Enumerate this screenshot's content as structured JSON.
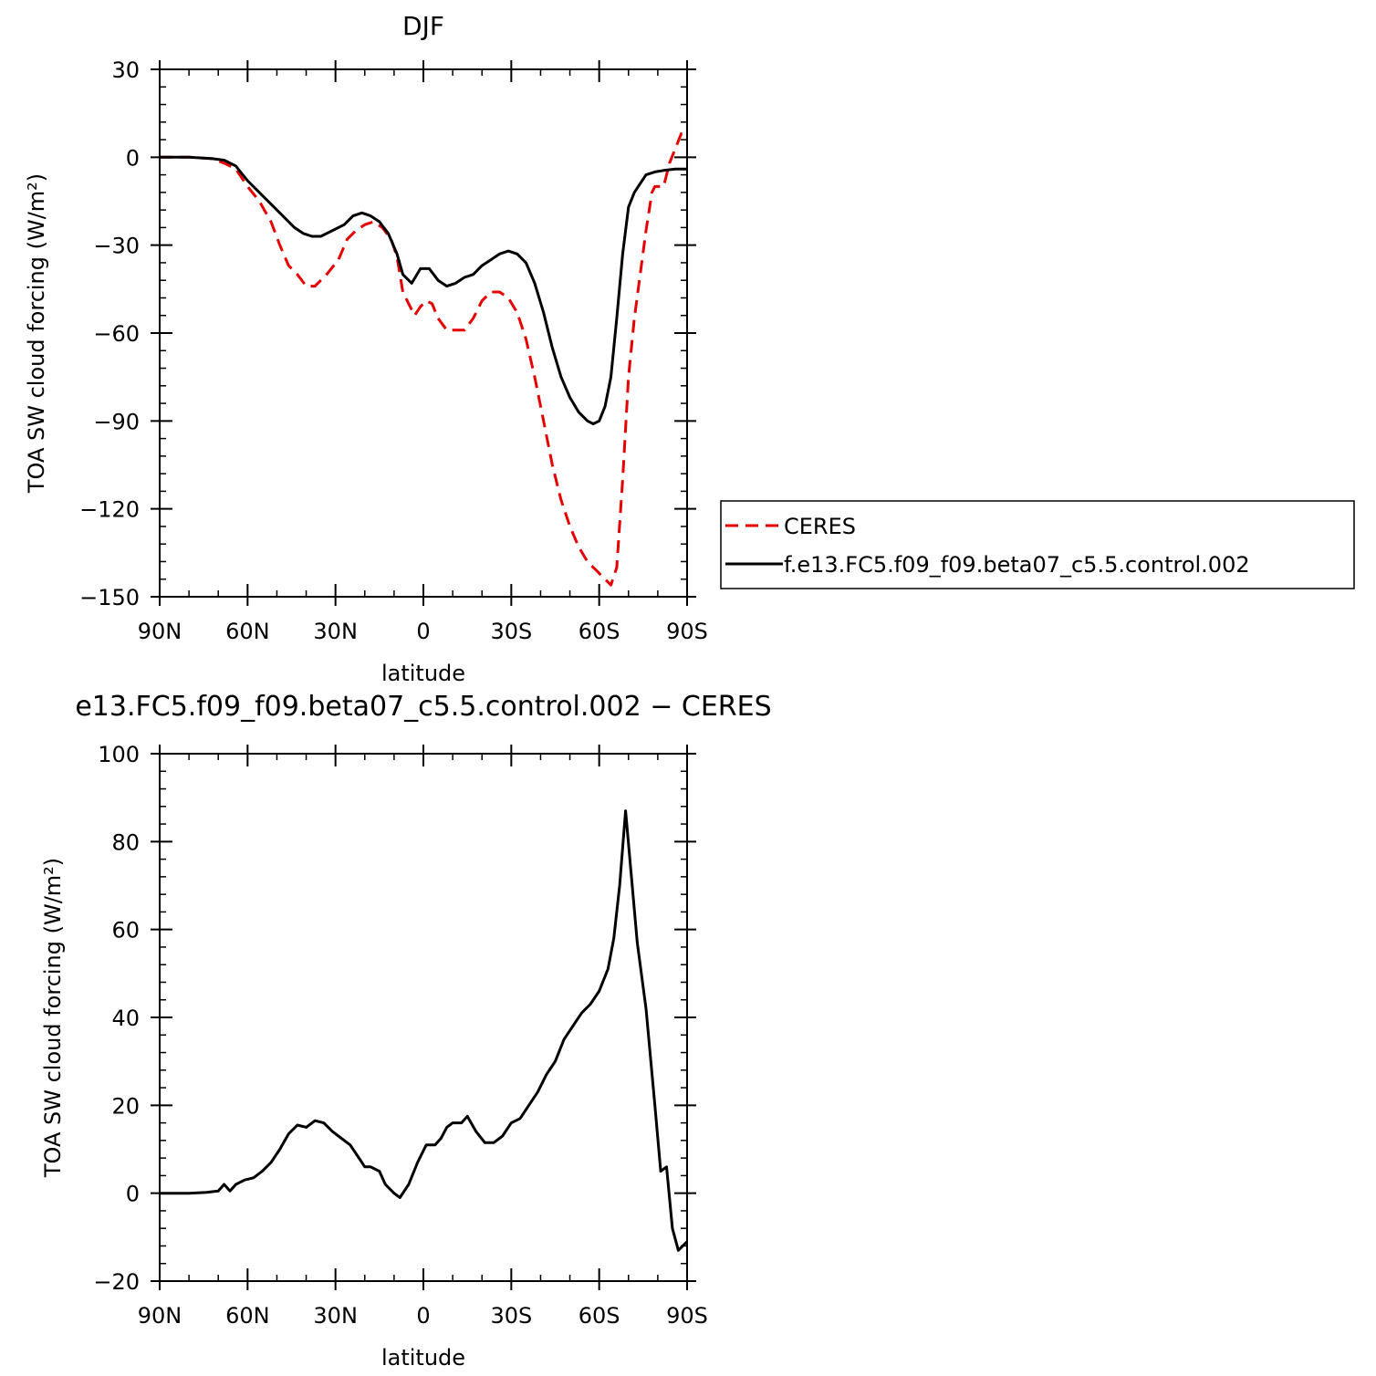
{
  "chart_data": [
    {
      "type": "line",
      "title": "DJF",
      "xlabel": "latitude",
      "ylabel": "TOA SW cloud forcing (W/m²)",
      "xlim": [
        90,
        -90
      ],
      "ylim": [
        -150,
        30
      ],
      "x_ticks": [
        90,
        60,
        30,
        0,
        -30,
        -60,
        -90
      ],
      "x_tick_labels": [
        "90N",
        "60N",
        "30N",
        "0",
        "30S",
        "60S",
        "90S"
      ],
      "y_ticks": [
        30,
        0,
        -30,
        -60,
        -90,
        -120,
        -150
      ],
      "y_tick_labels": [
        "30",
        "0",
        "−30",
        "−60",
        "−90",
        "−120",
        "−150"
      ],
      "legend_position": "right",
      "series": [
        {
          "name": "CERES",
          "color": "#e60000",
          "dash": true,
          "points": [
            [
              90,
              0
            ],
            [
              80,
              0
            ],
            [
              72,
              -0.5
            ],
            [
              68,
              -2
            ],
            [
              64,
              -4
            ],
            [
              60,
              -10
            ],
            [
              56,
              -15
            ],
            [
              52,
              -22
            ],
            [
              49,
              -30
            ],
            [
              46,
              -37
            ],
            [
              43,
              -40
            ],
            [
              40,
              -44
            ],
            [
              37,
              -44
            ],
            [
              33,
              -40
            ],
            [
              29,
              -35
            ],
            [
              26,
              -28
            ],
            [
              23,
              -25
            ],
            [
              20,
              -23
            ],
            [
              17,
              -22
            ],
            [
              14,
              -24
            ],
            [
              11,
              -28
            ],
            [
              9,
              -34
            ],
            [
              7,
              -46
            ],
            [
              5,
              -50
            ],
            [
              3,
              -54
            ],
            [
              1,
              -51
            ],
            [
              -1,
              -49
            ],
            [
              -3,
              -50
            ],
            [
              -5,
              -55
            ],
            [
              -8,
              -59
            ],
            [
              -11,
              -59
            ],
            [
              -14,
              -59
            ],
            [
              -17,
              -55
            ],
            [
              -20,
              -49
            ],
            [
              -23,
              -46
            ],
            [
              -26,
              -46
            ],
            [
              -29,
              -48
            ],
            [
              -32,
              -53
            ],
            [
              -35,
              -62
            ],
            [
              -38,
              -75
            ],
            [
              -41,
              -90
            ],
            [
              -44,
              -105
            ],
            [
              -47,
              -117
            ],
            [
              -50,
              -126
            ],
            [
              -53,
              -133
            ],
            [
              -56,
              -138
            ],
            [
              -59,
              -141
            ],
            [
              -62,
              -144
            ],
            [
              -64,
              -146
            ],
            [
              -66,
              -140
            ],
            [
              -68,
              -110
            ],
            [
              -70,
              -75
            ],
            [
              -72,
              -55
            ],
            [
              -74,
              -40
            ],
            [
              -76,
              -25
            ],
            [
              -78,
              -12
            ],
            [
              -79,
              -10
            ],
            [
              -82,
              -10
            ],
            [
              -84,
              -2
            ],
            [
              -86,
              3
            ],
            [
              -88,
              8
            ],
            [
              -90,
              7
            ]
          ]
        },
        {
          "name": "f.e13.FC5.f09_f09.beta07_c5.5.control.002",
          "color": "#000000",
          "dash": false,
          "points": [
            [
              90,
              0
            ],
            [
              80,
              0
            ],
            [
              72,
              -0.5
            ],
            [
              68,
              -1
            ],
            [
              64,
              -3
            ],
            [
              60,
              -8
            ],
            [
              56,
              -12
            ],
            [
              52,
              -16
            ],
            [
              48,
              -20
            ],
            [
              44,
              -24
            ],
            [
              41,
              -26
            ],
            [
              38,
              -27
            ],
            [
              35,
              -27
            ],
            [
              31,
              -25
            ],
            [
              27,
              -23
            ],
            [
              24,
              -20
            ],
            [
              21,
              -19
            ],
            [
              18,
              -20
            ],
            [
              15,
              -22
            ],
            [
              12,
              -26
            ],
            [
              9,
              -33
            ],
            [
              7,
              -40
            ],
            [
              4,
              -43
            ],
            [
              1,
              -38
            ],
            [
              -2,
              -38
            ],
            [
              -5,
              -42
            ],
            [
              -8,
              -44
            ],
            [
              -11,
              -43
            ],
            [
              -14,
              -41
            ],
            [
              -17,
              -40
            ],
            [
              -20,
              -37
            ],
            [
              -23,
              -35
            ],
            [
              -26,
              -33
            ],
            [
              -29,
              -32
            ],
            [
              -32,
              -33
            ],
            [
              -35,
              -36
            ],
            [
              -38,
              -43
            ],
            [
              -41,
              -53
            ],
            [
              -44,
              -65
            ],
            [
              -47,
              -75
            ],
            [
              -50,
              -82
            ],
            [
              -53,
              -87
            ],
            [
              -56,
              -90
            ],
            [
              -58,
              -91
            ],
            [
              -60,
              -90
            ],
            [
              -62,
              -85
            ],
            [
              -64,
              -75
            ],
            [
              -66,
              -55
            ],
            [
              -68,
              -33
            ],
            [
              -70,
              -17
            ],
            [
              -72,
              -12
            ],
            [
              -74,
              -9
            ],
            [
              -76,
              -6
            ],
            [
              -79,
              -5
            ],
            [
              -82,
              -4.5
            ],
            [
              -86,
              -4
            ],
            [
              -90,
              -4
            ]
          ]
        }
      ]
    },
    {
      "type": "line",
      "title": "e13.FC5.f09_f09.beta07_c5.5.control.002  −  CERES",
      "xlabel": "latitude",
      "ylabel": "TOA SW cloud forcing (W/m²)",
      "xlim": [
        90,
        -90
      ],
      "ylim": [
        -20,
        100
      ],
      "x_ticks": [
        90,
        60,
        30,
        0,
        -30,
        -60,
        -90
      ],
      "x_tick_labels": [
        "90N",
        "60N",
        "30N",
        "0",
        "30S",
        "60S",
        "90S"
      ],
      "y_ticks": [
        100,
        80,
        60,
        40,
        20,
        0,
        -20
      ],
      "y_tick_labels": [
        "100",
        "80",
        "60",
        "40",
        "20",
        "0",
        "−20"
      ],
      "series": [
        {
          "color": "#000000",
          "dash": false,
          "points": [
            [
              90,
              0
            ],
            [
              80,
              0
            ],
            [
              74,
              0.2
            ],
            [
              70,
              0.5
            ],
            [
              68,
              2
            ],
            [
              66,
              0.5
            ],
            [
              64,
              2
            ],
            [
              61,
              3
            ],
            [
              58,
              3.5
            ],
            [
              55,
              5
            ],
            [
              52,
              7
            ],
            [
              49,
              10
            ],
            [
              46,
              13.5
            ],
            [
              43,
              15.5
            ],
            [
              40,
              15
            ],
            [
              37,
              16.5
            ],
            [
              34,
              16
            ],
            [
              31,
              14
            ],
            [
              28,
              12.5
            ],
            [
              25,
              11
            ],
            [
              22,
              8
            ],
            [
              20,
              6
            ],
            [
              18,
              6
            ],
            [
              15,
              5
            ],
            [
              13,
              2
            ],
            [
              10,
              0
            ],
            [
              8,
              -1
            ],
            [
              5,
              2
            ],
            [
              2,
              7
            ],
            [
              -1,
              11
            ],
            [
              -4,
              11
            ],
            [
              -6,
              12.5
            ],
            [
              -8,
              15
            ],
            [
              -10,
              16
            ],
            [
              -13,
              16
            ],
            [
              -15,
              17.5
            ],
            [
              -18,
              14
            ],
            [
              -21,
              11.5
            ],
            [
              -24,
              11.5
            ],
            [
              -27,
              13
            ],
            [
              -30,
              16
            ],
            [
              -33,
              17
            ],
            [
              -36,
              20
            ],
            [
              -39,
              23
            ],
            [
              -42,
              27
            ],
            [
              -45,
              30
            ],
            [
              -48,
              35
            ],
            [
              -51,
              38
            ],
            [
              -54,
              41
            ],
            [
              -57,
              43
            ],
            [
              -60,
              46
            ],
            [
              -63,
              51
            ],
            [
              -65,
              58
            ],
            [
              -67,
              70
            ],
            [
              -69,
              87
            ],
            [
              -71,
              72
            ],
            [
              -73,
              57
            ],
            [
              -76,
              42
            ],
            [
              -79,
              20
            ],
            [
              -81,
              5
            ],
            [
              -83,
              6
            ],
            [
              -85,
              -8
            ],
            [
              -87,
              -13
            ],
            [
              -90,
              -11
            ]
          ]
        }
      ]
    }
  ]
}
